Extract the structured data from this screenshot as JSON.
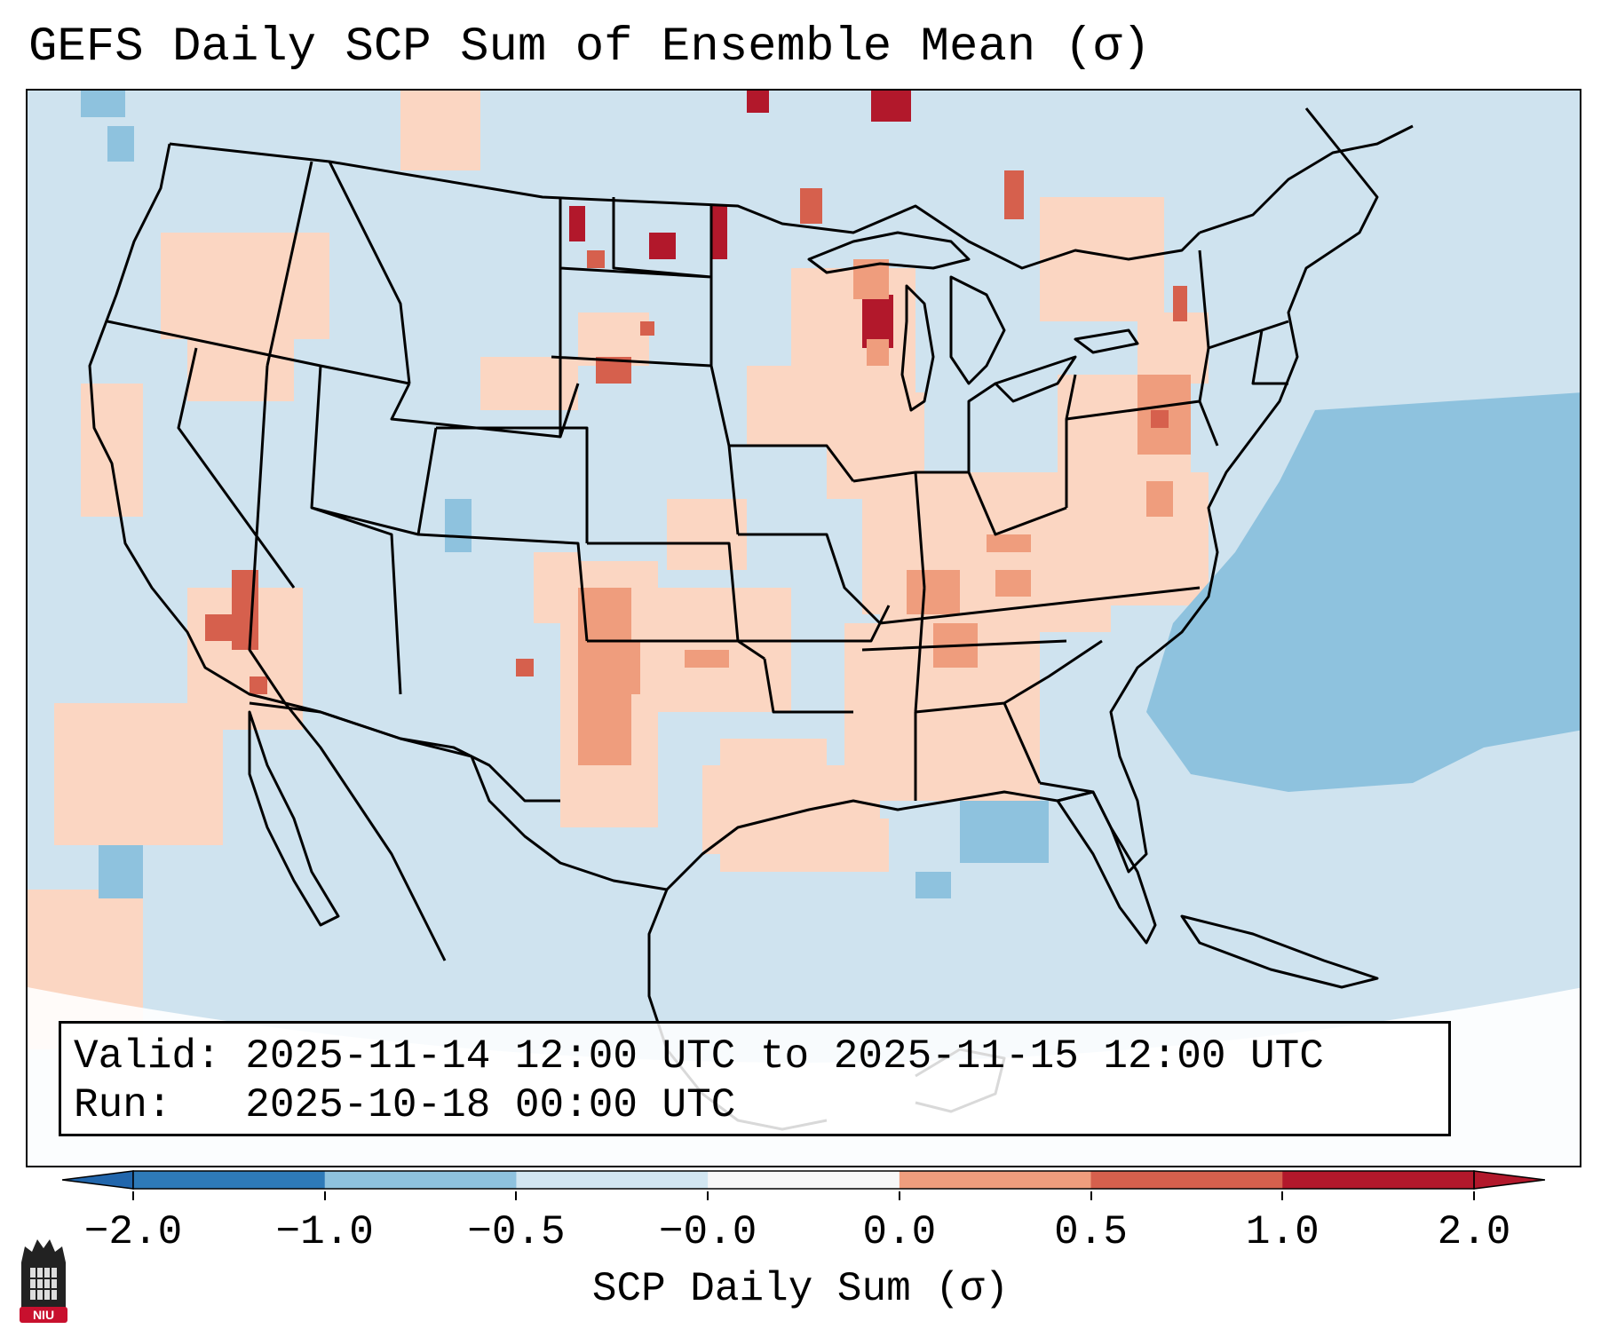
{
  "title": "GEFS Daily SCP Sum of Ensemble Mean (σ)",
  "info": {
    "valid_label": "Valid:",
    "valid_value": "2025-11-14 12:00 UTC to 2025-11-15 12:00 UTC",
    "run_label": "Run:",
    "run_value": "2025-10-18 00:00 UTC"
  },
  "colorbar": {
    "label": "SCP Daily Sum (σ)",
    "ticks": [
      "−2.0",
      "−1.0",
      "−0.5",
      "−0.0",
      "0.0",
      "0.5",
      "1.0",
      "2.0"
    ],
    "bin_colors": [
      "#2e7ab8",
      "#8ec2de",
      "#d2e6f1",
      "#f7f7f7",
      "#fbd6c2",
      "#ef9d7d",
      "#d6604d",
      "#b2182b"
    ],
    "low_extend_color": "#2166ac",
    "high_extend_color": "#b2182b"
  },
  "logo": {
    "text": "NIU",
    "color": "#c8102e"
  },
  "map_colors": {
    "background": "#cfe3ef",
    "light_blue": "#8ec2de",
    "light_red": "#fbd6c2",
    "mid_red": "#ef9d7d",
    "red": "#d6604d",
    "dark_red": "#b2182b"
  }
}
